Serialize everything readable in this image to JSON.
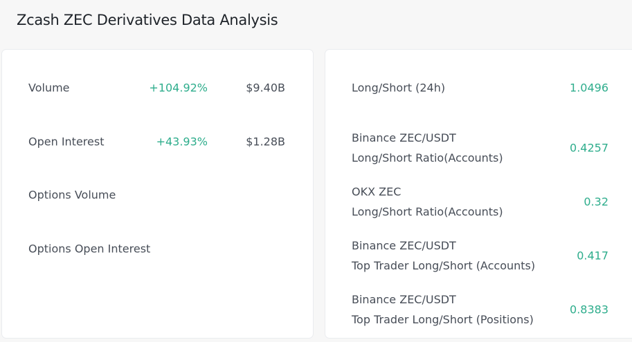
{
  "title": "Zcash ZEC Derivatives Data Analysis",
  "left_rows": [
    {
      "label": "Volume",
      "change": "+104.92%",
      "value": "$9.40B"
    },
    {
      "label": "Open Interest",
      "change": "+43.93%",
      "value": "$1.28B"
    },
    {
      "label": "Options Volume"
    },
    {
      "label": "Options Open Interest"
    }
  ],
  "right_rows": [
    {
      "label": "Long/Short (24h)",
      "value": "1.0496"
    },
    {
      "label": "Binance ZEC/USDT",
      "sub": "Long/Short Ratio(Accounts)",
      "value": "0.4257"
    },
    {
      "label": "OKX ZEC",
      "sub": "Long/Short Ratio(Accounts)",
      "value": "0.32"
    },
    {
      "label": "Binance ZEC/USDT",
      "sub": "Top Trader Long/Short (Accounts)",
      "value": "0.417"
    },
    {
      "label": "Binance ZEC/USDT",
      "sub": "Top Trader Long/Short (Positions)",
      "value": "0.8383"
    }
  ],
  "colors": {
    "positive": "#2ead8c",
    "background": "#f7f7f7"
  }
}
